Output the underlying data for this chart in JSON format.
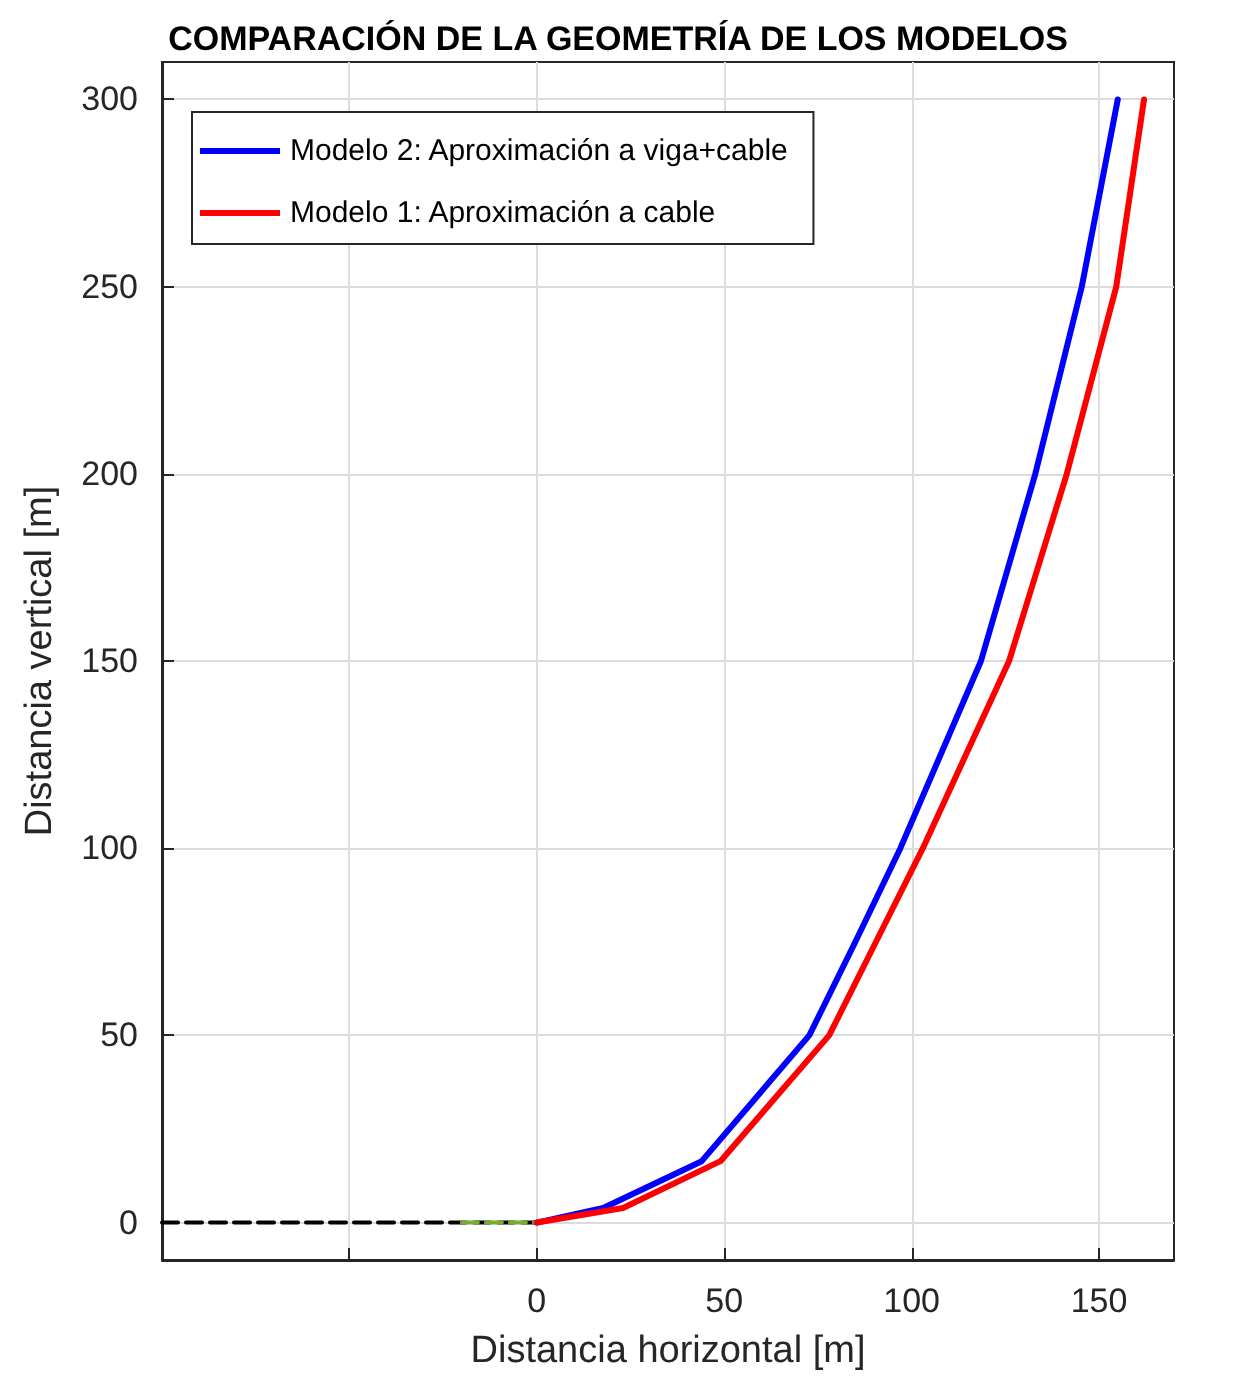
{
  "chart_data": {
    "type": "line",
    "title": "COMPARACIÓN DE LA GEOMETRÍA DE LOS MODELOS",
    "xlabel": "Distancia horizontal [m]",
    "ylabel": "Distancia vertical [m]",
    "xlim": [
      -100,
      170
    ],
    "xticks": [
      {
        "value": -50,
        "label": null
      },
      0,
      50,
      100,
      150
    ],
    "ylim": [
      -10,
      310
    ],
    "yticks": [
      0,
      50,
      100,
      150,
      200,
      250,
      300
    ],
    "grid": true,
    "legend": "top left",
    "marker": "none",
    "series": [
      {
        "name": "Modelo 2: Aproximación a viga+cable",
        "color": "#0000ff",
        "x": [
          0,
          17.7,
          44,
          72.7,
          85,
          97,
          118.5,
          133,
          145.4,
          155
        ],
        "values": [
          0,
          3.9,
          16.4,
          50,
          75,
          100,
          150,
          200,
          250,
          300
        ]
      },
      {
        "name": "Modelo 1: Aproximación a cable",
        "color": "#ff0000",
        "x": [
          0,
          23,
          49,
          78,
          90.5,
          103,
          126,
          141.4,
          154.6,
          162
        ],
        "values": [
          0,
          3.9,
          16.4,
          50,
          75,
          100,
          150,
          200,
          250,
          300
        ]
      },
      {
        "color": "#000000",
        "line_style": "dashed",
        "x": [
          -100,
          0
        ],
        "values": [
          0,
          0
        ]
      },
      {
        "color": "#77ac30",
        "line_style": "dashed",
        "x": [
          -20,
          0
        ],
        "values": [
          0,
          0
        ]
      }
    ]
  }
}
